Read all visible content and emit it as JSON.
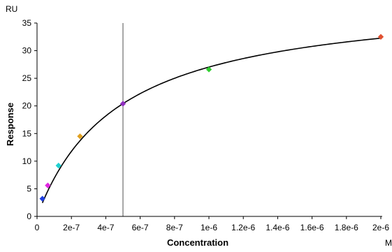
{
  "chart_data": {
    "type": "scatter",
    "xlabel": "Concentration",
    "ylabel": "Response",
    "y_unit": "RU",
    "x_unit": "M",
    "xlim": [
      0,
      2e-06
    ],
    "ylim": [
      0,
      35
    ],
    "x_ticks": [
      0,
      2e-07,
      4e-07,
      6e-07,
      8e-07,
      1e-06,
      1.2e-06,
      1.4e-06,
      1.6e-06,
      1.8e-06,
      2e-06
    ],
    "x_tick_labels": [
      "0",
      "2e-7",
      "4e-7",
      "6e-7",
      "8e-7",
      "1e-6",
      "1.2e-6",
      "1.4e-6",
      "1.6e-6",
      "1.8e-6",
      "2e-6"
    ],
    "y_ticks": [
      0,
      5,
      10,
      15,
      20,
      25,
      30,
      35
    ],
    "y_tick_labels": [
      "0",
      "5",
      "10",
      "15",
      "20",
      "25",
      "30",
      "35"
    ],
    "grid": false,
    "points": [
      {
        "x": 3.125e-08,
        "y": 3.2,
        "color": "#1f3fe0"
      },
      {
        "x": 6.25e-08,
        "y": 5.6,
        "color": "#e028e0"
      },
      {
        "x": 1.25e-07,
        "y": 9.2,
        "color": "#20d0d0"
      },
      {
        "x": 2.5e-07,
        "y": 14.5,
        "color": "#e0a020"
      },
      {
        "x": 5e-07,
        "y": 20.4,
        "color": "#9030c0"
      },
      {
        "x": 1e-06,
        "y": 26.6,
        "color": "#30d030"
      },
      {
        "x": 2e-06,
        "y": 32.5,
        "color": "#e05030"
      }
    ],
    "fit": {
      "model": "steady-state affinity",
      "rmax": 40.0,
      "kd": 4.8e-07,
      "color": "#000000"
    },
    "kd_marker": {
      "x": 5e-07,
      "color": "#505050"
    }
  }
}
